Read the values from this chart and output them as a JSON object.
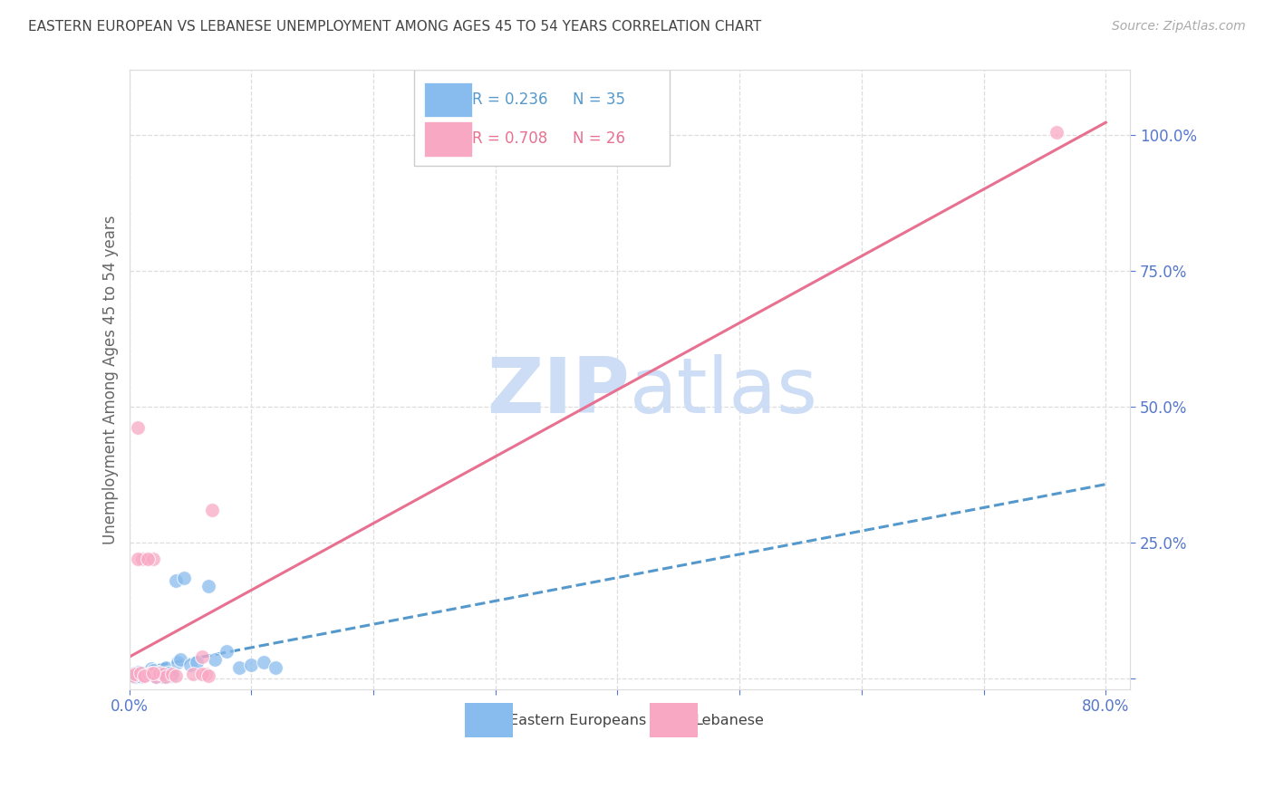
{
  "title": "EASTERN EUROPEAN VS LEBANESE UNEMPLOYMENT AMONG AGES 45 TO 54 YEARS CORRELATION CHART",
  "source": "Source: ZipAtlas.com",
  "ylabel": "Unemployment Among Ages 45 to 54 years",
  "watermark_zip": "ZIP",
  "watermark_atlas": "atlas",
  "xlim": [
    0.0,
    0.82
  ],
  "ylim": [
    -0.02,
    1.12
  ],
  "x_ticks": [
    0.0,
    0.1,
    0.2,
    0.3,
    0.4,
    0.5,
    0.6,
    0.7,
    0.8
  ],
  "y_ticks_right": [
    0.0,
    0.25,
    0.5,
    0.75,
    1.0
  ],
  "y_tick_labels_right": [
    "",
    "25.0%",
    "50.0%",
    "75.0%",
    "100.0%"
  ],
  "blue_r": "0.236",
  "blue_n": "35",
  "pink_r": "0.708",
  "pink_n": "26",
  "blue_scatter_color": "#88bbee",
  "pink_scatter_color": "#f9a8c4",
  "blue_line_color": "#5599cc",
  "pink_line_color": "#e87090",
  "axis_tick_color": "#5577cc",
  "title_color": "#444444",
  "source_color": "#aaaaaa",
  "grid_color": "#dddddd",
  "watermark_color": "#ccddf5",
  "background_color": "#ffffff",
  "ee_x": [
    0.002,
    0.003,
    0.004,
    0.005,
    0.007,
    0.008,
    0.009,
    0.01,
    0.011,
    0.012,
    0.014,
    0.016,
    0.018,
    0.02,
    0.022,
    0.025,
    0.028,
    0.03,
    0.032,
    0.035,
    0.038,
    0.04,
    0.042,
    0.045,
    0.05,
    0.055,
    0.065,
    0.07,
    0.08,
    0.09,
    0.1,
    0.11,
    0.12,
    0.005,
    0.008
  ],
  "ee_y": [
    0.005,
    0.008,
    0.003,
    0.01,
    0.005,
    0.012,
    0.008,
    0.01,
    0.003,
    0.005,
    0.007,
    0.01,
    0.018,
    0.015,
    0.003,
    0.012,
    0.003,
    0.02,
    0.01,
    0.005,
    0.18,
    0.03,
    0.035,
    0.185,
    0.025,
    0.03,
    0.17,
    0.035,
    0.05,
    0.02,
    0.025,
    0.03,
    0.02,
    0.003,
    0.005
  ],
  "lb_x": [
    0.003,
    0.005,
    0.007,
    0.009,
    0.011,
    0.013,
    0.016,
    0.018,
    0.02,
    0.022,
    0.025,
    0.028,
    0.03,
    0.035,
    0.038,
    0.052,
    0.06,
    0.063,
    0.068,
    0.007,
    0.012,
    0.015,
    0.02,
    0.06,
    0.065,
    0.76
  ],
  "lb_y": [
    0.005,
    0.008,
    0.462,
    0.01,
    0.22,
    0.005,
    0.008,
    0.01,
    0.22,
    0.004,
    0.01,
    0.008,
    0.004,
    0.008,
    0.005,
    0.008,
    0.04,
    0.008,
    0.31,
    0.22,
    0.005,
    0.22,
    0.01,
    0.008,
    0.005,
    1.005
  ]
}
